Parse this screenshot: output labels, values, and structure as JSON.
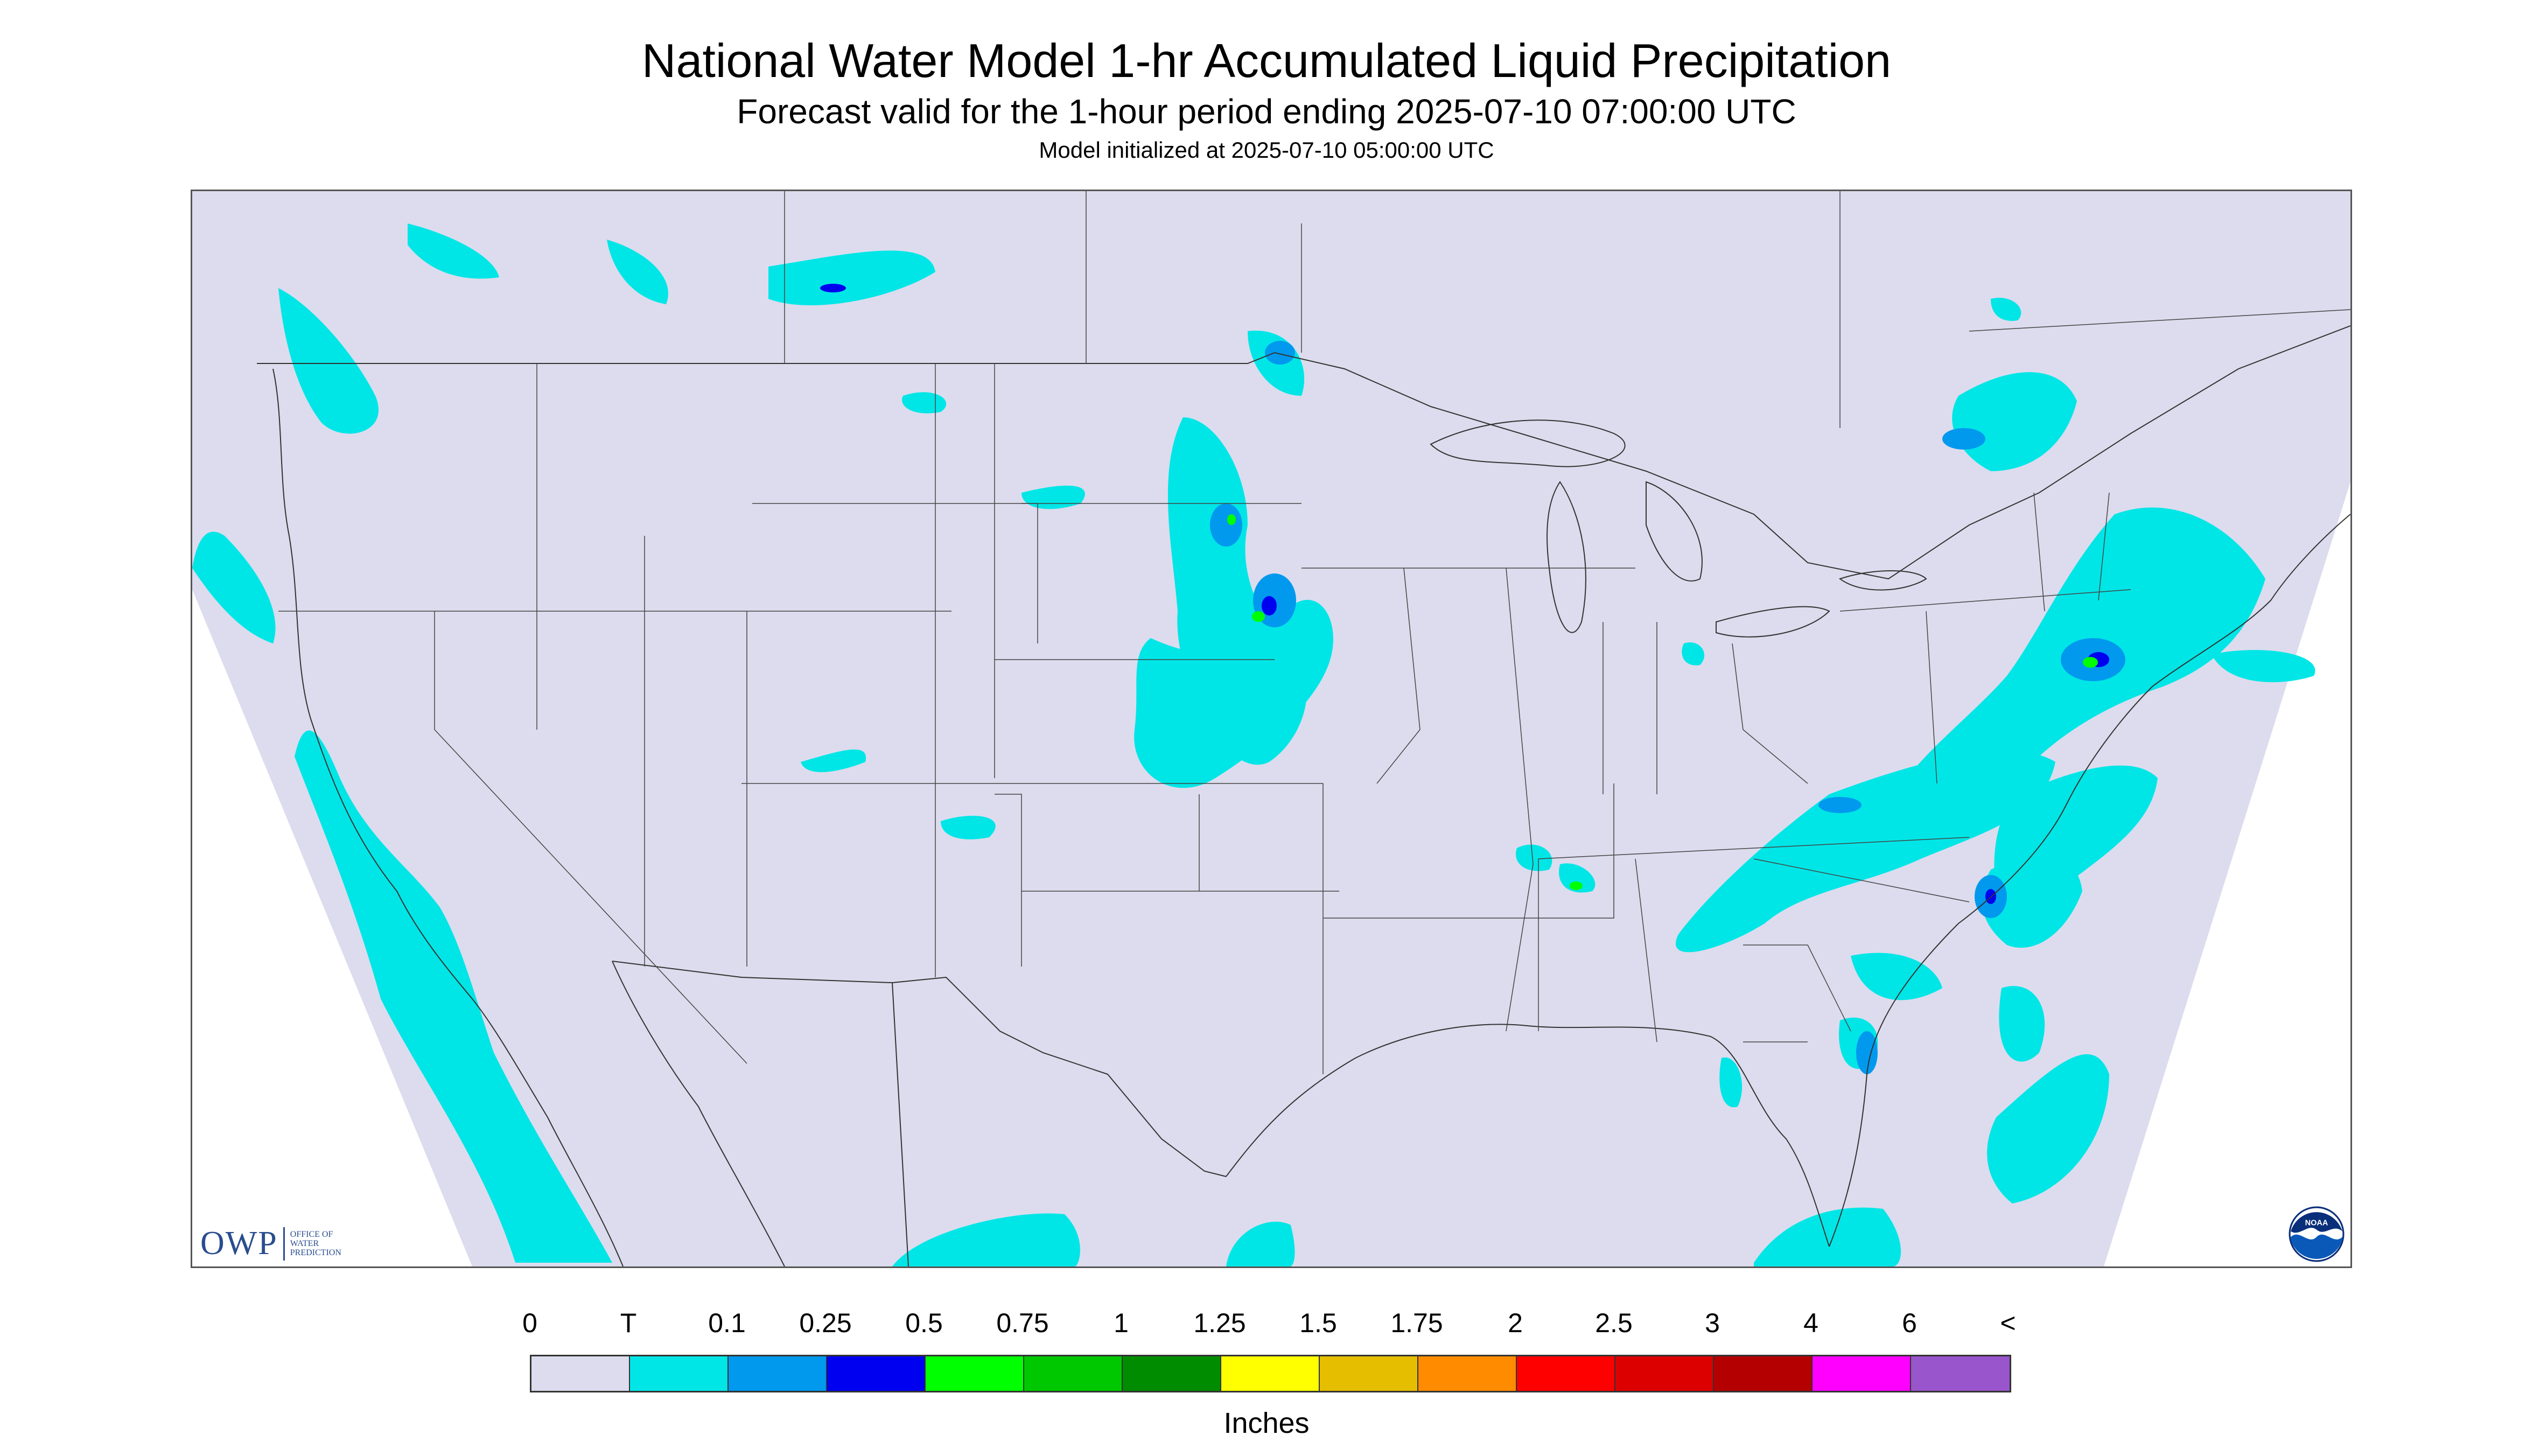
{
  "title": "National Water Model 1-hr Accumulated Liquid Precipitation",
  "subtitle": "Forecast valid for the 1-hour period ending 2025-07-10 07:00:00 UTC",
  "init_text": "Model initialized at 2025-07-10 05:00:00 UTC",
  "logos": {
    "owp_mark": "OWP",
    "owp_text": [
      "OFFICE OF",
      "WATER",
      "PREDICTION"
    ],
    "noaa_text": "NOAA"
  },
  "legend": {
    "units": "Inches",
    "labels": [
      "0",
      "T",
      "0.1",
      "0.25",
      "0.5",
      "0.75",
      "1",
      "1.25",
      "1.5",
      "1.75",
      "2",
      "2.5",
      "3",
      "4",
      "6",
      "<"
    ],
    "colors": [
      "#dcdcee",
      "#00e6e6",
      "#0099ee",
      "#0000f0",
      "#00ff00",
      "#00c800",
      "#008c00",
      "#ffff00",
      "#e6be00",
      "#ff8c00",
      "#ff0000",
      "#dc0000",
      "#b40000",
      "#ff00ff",
      "#9955cc"
    ]
  },
  "colors": {
    "no_data": "#ffffff",
    "background": "#dcdcee",
    "trace": "#00e6e6",
    "light": "#0099ee",
    "moderate": "#0000f0",
    "heavy": "#00ff00",
    "boundary": "#333333"
  }
}
